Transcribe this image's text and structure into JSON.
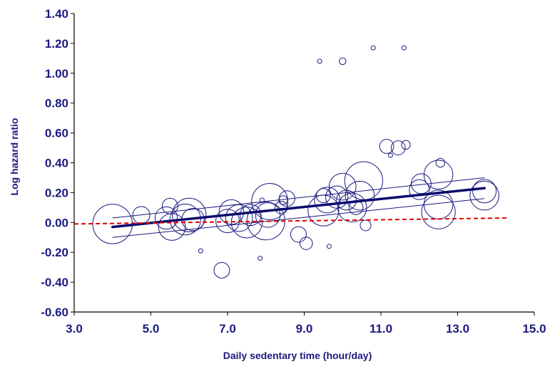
{
  "colors": {
    "axis": "#000000",
    "text": "#1a1a80",
    "bubble": "#1a1a80",
    "fit": "#0a0a6e",
    "ci": "#1a1a80",
    "reference": "#e00000"
  },
  "chart_data": {
    "type": "scatter",
    "title": "",
    "xlabel": "Daily sedentary time (hour/day)",
    "ylabel": "Log hazard ratio",
    "xlim": [
      3.0,
      15.0
    ],
    "ylim": [
      -0.6,
      1.4
    ],
    "x_ticks": [
      "3.0",
      "5.0",
      "7.0",
      "9.0",
      "11.0",
      "13.0",
      "15.0"
    ],
    "y_ticks": [
      "-0.60",
      "-0.40",
      "-0.20",
      "0.00",
      "0.20",
      "0.40",
      "0.60",
      "0.80",
      "1.00",
      "1.20",
      "1.40"
    ],
    "grid": false,
    "legend": "none",
    "bubble_note": "bubble size proportional to study weight",
    "points": [
      {
        "x": 4.0,
        "y": -0.01,
        "w": 32
      },
      {
        "x": 4.75,
        "y": 0.05,
        "w": 10
      },
      {
        "x": 5.5,
        "y": 0.11,
        "w": 9
      },
      {
        "x": 5.4,
        "y": 0.03,
        "w": 14
      },
      {
        "x": 5.55,
        "y": -0.03,
        "w": 18
      },
      {
        "x": 5.9,
        "y": 0.02,
        "w": 22
      },
      {
        "x": 6.0,
        "y": 0.05,
        "w": 25
      },
      {
        "x": 6.1,
        "y": 0.02,
        "w": 14
      },
      {
        "x": 6.3,
        "y": -0.19,
        "w": 3
      },
      {
        "x": 6.85,
        "y": -0.32,
        "w": 9
      },
      {
        "x": 7.1,
        "y": 0.07,
        "w": 16
      },
      {
        "x": 7.0,
        "y": 0.01,
        "w": 15
      },
      {
        "x": 7.3,
        "y": 0.03,
        "w": 18
      },
      {
        "x": 7.5,
        "y": 0.0,
        "w": 22
      },
      {
        "x": 7.6,
        "y": 0.05,
        "w": 13
      },
      {
        "x": 7.9,
        "y": 0.15,
        "w": 3
      },
      {
        "x": 7.85,
        "y": -0.24,
        "w": 3
      },
      {
        "x": 8.05,
        "y": 0.05,
        "w": 16
      },
      {
        "x": 8.0,
        "y": 0.01,
        "w": 30
      },
      {
        "x": 8.1,
        "y": 0.14,
        "w": 28
      },
      {
        "x": 8.45,
        "y": 0.15,
        "w": 5
      },
      {
        "x": 8.55,
        "y": 0.16,
        "w": 9
      },
      {
        "x": 8.4,
        "y": 0.1,
        "w": 7
      },
      {
        "x": 8.85,
        "y": -0.08,
        "w": 9
      },
      {
        "x": 9.05,
        "y": -0.14,
        "w": 7
      },
      {
        "x": 9.4,
        "y": 1.08,
        "w": 3
      },
      {
        "x": 9.5,
        "y": 0.08,
        "w": 22
      },
      {
        "x": 9.5,
        "y": 0.18,
        "w": 8
      },
      {
        "x": 9.6,
        "y": 0.15,
        "w": 17
      },
      {
        "x": 9.65,
        "y": -0.16,
        "w": 3
      },
      {
        "x": 9.85,
        "y": 0.17,
        "w": 14
      },
      {
        "x": 10.0,
        "y": 1.08,
        "w": 4
      },
      {
        "x": 10.0,
        "y": 0.24,
        "w": 18
      },
      {
        "x": 10.1,
        "y": 0.15,
        "w": 12
      },
      {
        "x": 10.25,
        "y": 0.1,
        "w": 20
      },
      {
        "x": 10.35,
        "y": 0.1,
        "w": 8
      },
      {
        "x": 10.45,
        "y": 0.18,
        "w": 20
      },
      {
        "x": 10.55,
        "y": 0.28,
        "w": 30
      },
      {
        "x": 10.6,
        "y": -0.02,
        "w": 6
      },
      {
        "x": 10.8,
        "y": 1.17,
        "w": 3
      },
      {
        "x": 11.15,
        "y": 0.51,
        "w": 8
      },
      {
        "x": 11.25,
        "y": 0.45,
        "w": 3
      },
      {
        "x": 11.45,
        "y": 0.5,
        "w": 8
      },
      {
        "x": 11.65,
        "y": 0.52,
        "w": 5
      },
      {
        "x": 11.6,
        "y": 1.17,
        "w": 3
      },
      {
        "x": 12.0,
        "y": 0.22,
        "w": 12
      },
      {
        "x": 12.05,
        "y": 0.26,
        "w": 12
      },
      {
        "x": 12.5,
        "y": 0.32,
        "w": 20
      },
      {
        "x": 12.55,
        "y": 0.4,
        "w": 5
      },
      {
        "x": 12.5,
        "y": 0.07,
        "w": 25
      },
      {
        "x": 12.5,
        "y": 0.12,
        "w": 20
      },
      {
        "x": 13.7,
        "y": 0.18,
        "w": 20
      },
      {
        "x": 13.7,
        "y": 0.21,
        "w": 15
      }
    ],
    "fit_line": {
      "x": [
        4.0,
        13.7
      ],
      "y": [
        -0.03,
        0.23
      ]
    },
    "ci_upper": {
      "x": [
        4.0,
        13.7
      ],
      "y": [
        0.03,
        0.3
      ]
    },
    "ci_lower": {
      "x": [
        4.0,
        13.7
      ],
      "y": [
        -0.1,
        0.16
      ]
    },
    "reference_line": {
      "x": [
        3.0,
        14.3
      ],
      "y": [
        -0.01,
        0.03
      ]
    }
  }
}
